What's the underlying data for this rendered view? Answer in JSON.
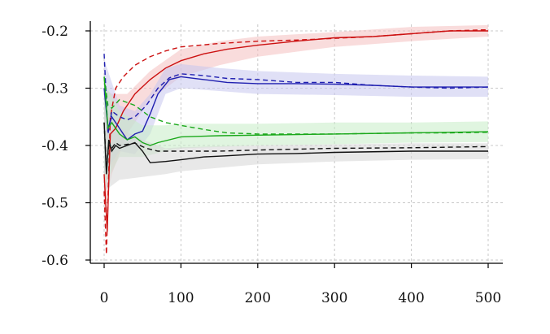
{
  "chart_data": {
    "type": "line",
    "title": "",
    "xlabel": "",
    "ylabel": "",
    "xlim": [
      0,
      500
    ],
    "ylim": [
      -0.6,
      -0.2
    ],
    "x_ticks": [
      0,
      100,
      200,
      300,
      400,
      500
    ],
    "y_ticks": [
      -0.6,
      -0.5,
      -0.4,
      -0.3,
      -0.2
    ],
    "x_tick_labels": [
      "0",
      "100",
      "200",
      "300",
      "400",
      "500"
    ],
    "y_tick_labels": [
      "-0.6",
      "-0.5",
      "-0.4",
      "-0.3",
      "-0.2"
    ],
    "grid": true,
    "series": [
      {
        "color": "#cc1111",
        "band_color": "#f4c0c0",
        "solid": [
          [
            0,
            -0.45
          ],
          [
            4,
            -0.55
          ],
          [
            8,
            -0.38
          ],
          [
            15,
            -0.37
          ],
          [
            25,
            -0.34
          ],
          [
            40,
            -0.31
          ],
          [
            60,
            -0.285
          ],
          [
            80,
            -0.265
          ],
          [
            100,
            -0.252
          ],
          [
            130,
            -0.24
          ],
          [
            160,
            -0.232
          ],
          [
            200,
            -0.225
          ],
          [
            250,
            -0.218
          ],
          [
            300,
            -0.212
          ],
          [
            350,
            -0.21
          ],
          [
            400,
            -0.205
          ],
          [
            450,
            -0.2
          ],
          [
            500,
            -0.2
          ]
        ],
        "dashed": [
          [
            0,
            -0.48
          ],
          [
            3,
            -0.59
          ],
          [
            8,
            -0.35
          ],
          [
            15,
            -0.3
          ],
          [
            25,
            -0.28
          ],
          [
            40,
            -0.26
          ],
          [
            60,
            -0.245
          ],
          [
            80,
            -0.235
          ],
          [
            100,
            -0.228
          ],
          [
            150,
            -0.222
          ],
          [
            200,
            -0.218
          ],
          [
            250,
            -0.216
          ],
          [
            300,
            -0.213
          ],
          [
            350,
            -0.21
          ],
          [
            400,
            -0.205
          ],
          [
            450,
            -0.2
          ],
          [
            500,
            -0.198
          ]
        ],
        "band_upper": [
          [
            0,
            -0.3
          ],
          [
            10,
            -0.31
          ],
          [
            30,
            -0.31
          ],
          [
            60,
            -0.27
          ],
          [
            100,
            -0.232
          ],
          [
            150,
            -0.218
          ],
          [
            200,
            -0.21
          ],
          [
            300,
            -0.202
          ],
          [
            400,
            -0.193
          ],
          [
            500,
            -0.19
          ]
        ],
        "band_lower": [
          [
            0,
            -0.52
          ],
          [
            10,
            -0.45
          ],
          [
            30,
            -0.38
          ],
          [
            60,
            -0.32
          ],
          [
            100,
            -0.28
          ],
          [
            150,
            -0.26
          ],
          [
            200,
            -0.245
          ],
          [
            300,
            -0.228
          ],
          [
            400,
            -0.218
          ],
          [
            500,
            -0.21
          ]
        ]
      },
      {
        "color": "#1f1fb0",
        "band_color": "#c6c6ee",
        "solid": [
          [
            0,
            -0.3
          ],
          [
            5,
            -0.37
          ],
          [
            10,
            -0.35
          ],
          [
            20,
            -0.37
          ],
          [
            30,
            -0.39
          ],
          [
            40,
            -0.38
          ],
          [
            50,
            -0.375
          ],
          [
            60,
            -0.345
          ],
          [
            70,
            -0.31
          ],
          [
            85,
            -0.285
          ],
          [
            100,
            -0.28
          ],
          [
            130,
            -0.285
          ],
          [
            160,
            -0.29
          ],
          [
            200,
            -0.292
          ],
          [
            250,
            -0.292
          ],
          [
            300,
            -0.293
          ],
          [
            350,
            -0.295
          ],
          [
            400,
            -0.298
          ],
          [
            450,
            -0.298
          ],
          [
            500,
            -0.298
          ]
        ],
        "dashed": [
          [
            0,
            -0.24
          ],
          [
            5,
            -0.38
          ],
          [
            10,
            -0.34
          ],
          [
            20,
            -0.35
          ],
          [
            30,
            -0.355
          ],
          [
            40,
            -0.35
          ],
          [
            55,
            -0.33
          ],
          [
            70,
            -0.3
          ],
          [
            85,
            -0.282
          ],
          [
            100,
            -0.275
          ],
          [
            130,
            -0.278
          ],
          [
            160,
            -0.283
          ],
          [
            200,
            -0.285
          ],
          [
            250,
            -0.29
          ],
          [
            300,
            -0.29
          ],
          [
            350,
            -0.295
          ],
          [
            400,
            -0.298
          ],
          [
            450,
            -0.3
          ],
          [
            500,
            -0.298
          ]
        ],
        "band_upper": [
          [
            0,
            -0.25
          ],
          [
            20,
            -0.33
          ],
          [
            40,
            -0.34
          ],
          [
            60,
            -0.31
          ],
          [
            80,
            -0.265
          ],
          [
            100,
            -0.258
          ],
          [
            150,
            -0.265
          ],
          [
            200,
            -0.27
          ],
          [
            300,
            -0.275
          ],
          [
            400,
            -0.278
          ],
          [
            500,
            -0.28
          ]
        ],
        "band_lower": [
          [
            0,
            -0.45
          ],
          [
            20,
            -0.41
          ],
          [
            40,
            -0.415
          ],
          [
            60,
            -0.38
          ],
          [
            80,
            -0.31
          ],
          [
            100,
            -0.3
          ],
          [
            150,
            -0.305
          ],
          [
            200,
            -0.31
          ],
          [
            300,
            -0.312
          ],
          [
            400,
            -0.315
          ],
          [
            500,
            -0.315
          ]
        ]
      },
      {
        "color": "#1aa81a",
        "band_color": "#c6ecc6",
        "solid": [
          [
            0,
            -0.28
          ],
          [
            5,
            -0.37
          ],
          [
            10,
            -0.36
          ],
          [
            20,
            -0.38
          ],
          [
            30,
            -0.39
          ],
          [
            40,
            -0.385
          ],
          [
            50,
            -0.395
          ],
          [
            60,
            -0.4
          ],
          [
            70,
            -0.395
          ],
          [
            85,
            -0.39
          ],
          [
            100,
            -0.385
          ],
          [
            150,
            -0.383
          ],
          [
            200,
            -0.382
          ],
          [
            300,
            -0.38
          ],
          [
            400,
            -0.378
          ],
          [
            450,
            -0.377
          ],
          [
            500,
            -0.376
          ]
        ],
        "dashed": [
          [
            0,
            -0.28
          ],
          [
            5,
            -0.33
          ],
          [
            10,
            -0.335
          ],
          [
            20,
            -0.32
          ],
          [
            30,
            -0.325
          ],
          [
            40,
            -0.33
          ],
          [
            50,
            -0.34
          ],
          [
            60,
            -0.35
          ],
          [
            80,
            -0.36
          ],
          [
            100,
            -0.365
          ],
          [
            130,
            -0.372
          ],
          [
            160,
            -0.378
          ],
          [
            200,
            -0.38
          ],
          [
            300,
            -0.38
          ],
          [
            400,
            -0.378
          ],
          [
            450,
            -0.378
          ],
          [
            500,
            -0.377
          ]
        ],
        "band_upper": [
          [
            0,
            -0.29
          ],
          [
            20,
            -0.34
          ],
          [
            50,
            -0.365
          ],
          [
            80,
            -0.365
          ],
          [
            100,
            -0.362
          ],
          [
            200,
            -0.362
          ],
          [
            300,
            -0.36
          ],
          [
            400,
            -0.36
          ],
          [
            500,
            -0.358
          ]
        ],
        "band_lower": [
          [
            0,
            -0.47
          ],
          [
            20,
            -0.42
          ],
          [
            50,
            -0.42
          ],
          [
            80,
            -0.41
          ],
          [
            100,
            -0.405
          ],
          [
            200,
            -0.4
          ],
          [
            300,
            -0.398
          ],
          [
            400,
            -0.395
          ],
          [
            500,
            -0.394
          ]
        ]
      },
      {
        "color": "#111111",
        "band_color": "#d6d6d6",
        "solid": [
          [
            0,
            -0.36
          ],
          [
            3,
            -0.45
          ],
          [
            6,
            -0.39
          ],
          [
            10,
            -0.41
          ],
          [
            15,
            -0.4
          ],
          [
            20,
            -0.405
          ],
          [
            30,
            -0.4
          ],
          [
            40,
            -0.395
          ],
          [
            50,
            -0.41
          ],
          [
            60,
            -0.43
          ],
          [
            80,
            -0.428
          ],
          [
            100,
            -0.425
          ],
          [
            130,
            -0.42
          ],
          [
            160,
            -0.418
          ],
          [
            200,
            -0.415
          ],
          [
            250,
            -0.414
          ],
          [
            300,
            -0.412
          ],
          [
            400,
            -0.41
          ],
          [
            450,
            -0.41
          ],
          [
            500,
            -0.41
          ]
        ],
        "dashed": [
          [
            0,
            -0.36
          ],
          [
            3,
            -0.44
          ],
          [
            6,
            -0.4
          ],
          [
            10,
            -0.405
          ],
          [
            15,
            -0.395
          ],
          [
            20,
            -0.4
          ],
          [
            30,
            -0.398
          ],
          [
            40,
            -0.396
          ],
          [
            55,
            -0.405
          ],
          [
            70,
            -0.41
          ],
          [
            100,
            -0.41
          ],
          [
            150,
            -0.41
          ],
          [
            200,
            -0.408
          ],
          [
            300,
            -0.405
          ],
          [
            400,
            -0.404
          ],
          [
            450,
            -0.403
          ],
          [
            500,
            -0.402
          ]
        ],
        "band_upper": [
          [
            0,
            -0.34
          ],
          [
            20,
            -0.37
          ],
          [
            50,
            -0.39
          ],
          [
            80,
            -0.405
          ],
          [
            100,
            -0.403
          ],
          [
            200,
            -0.4
          ],
          [
            300,
            -0.398
          ],
          [
            400,
            -0.396
          ],
          [
            500,
            -0.396
          ]
        ],
        "band_lower": [
          [
            0,
            -0.48
          ],
          [
            20,
            -0.46
          ],
          [
            50,
            -0.455
          ],
          [
            80,
            -0.45
          ],
          [
            100,
            -0.445
          ],
          [
            200,
            -0.433
          ],
          [
            300,
            -0.428
          ],
          [
            400,
            -0.425
          ],
          [
            500,
            -0.424
          ]
        ]
      }
    ]
  }
}
